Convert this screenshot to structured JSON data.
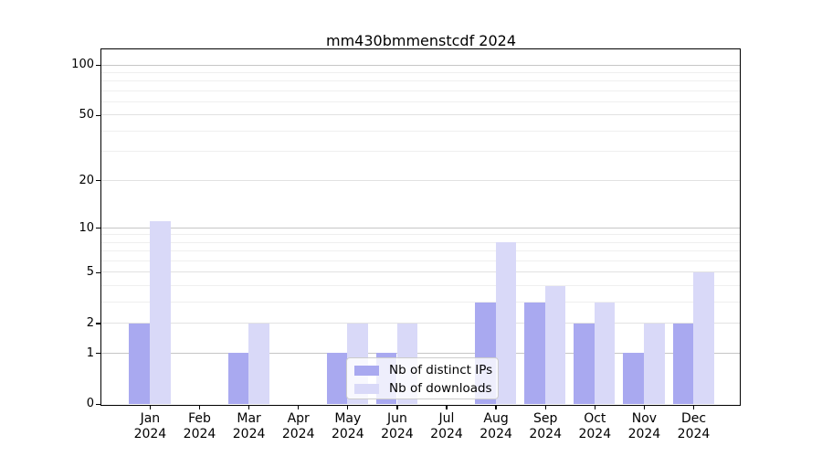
{
  "title": "mm430bmmenstcdf 2024",
  "chart_data": {
    "type": "bar",
    "title": "mm430bmmenstcdf 2024",
    "categories": [
      "Jan 2024",
      "Feb 2024",
      "Mar 2024",
      "Apr 2024",
      "May 2024",
      "Jun 2024",
      "Jul 2024",
      "Aug 2024",
      "Sep 2024",
      "Oct 2024",
      "Nov 2024",
      "Dec 2024"
    ],
    "series": [
      {
        "name": "Nb of distinct IPs",
        "color": "#a9a9f0",
        "values": [
          2,
          0,
          1,
          0,
          1,
          1,
          0,
          3,
          3,
          2,
          1,
          2
        ]
      },
      {
        "name": "Nb of downloads",
        "color": "#d9d9f8",
        "values": [
          11,
          0,
          2,
          0,
          2,
          2,
          0,
          8,
          4,
          3,
          2,
          5
        ]
      }
    ],
    "xlabel": "",
    "ylabel": "",
    "y_axis": {
      "scale": "log1p",
      "range": [
        0,
        100
      ],
      "tick_labels": [
        "0",
        "1",
        "2",
        "5",
        "10",
        "20",
        "50",
        "100"
      ],
      "tick_values": [
        0,
        1,
        2,
        5,
        10,
        20,
        50,
        100
      ],
      "decade_gridlines": [
        1,
        10,
        100
      ],
      "mid_gridlines": [
        2,
        5,
        20,
        50
      ],
      "minor_gridlines": [
        3,
        4,
        6,
        7,
        8,
        9,
        30,
        40,
        60,
        70,
        80,
        90
      ]
    },
    "grid": true,
    "legend_position": "lower center"
  },
  "colors": {
    "distinct_ips": "#a9a9f0",
    "downloads": "#d9d9f8",
    "decade_grid": "#c6c6c6",
    "mid_grid": "#e2e2e2",
    "minor_grid": "#efefef",
    "axis": "#000000",
    "legend_border": "#cccccc",
    "legend_background": "rgba(255,255,255,0.8)"
  }
}
